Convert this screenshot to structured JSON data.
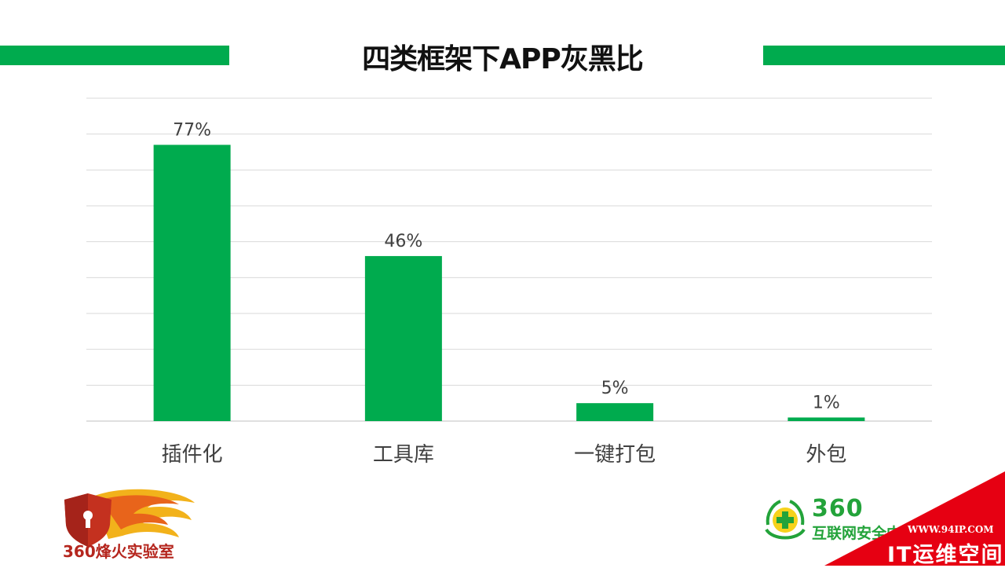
{
  "colors": {
    "accent_green": "#00ab4e",
    "grid": "#d9d9d9",
    "axis": "#bfbfbf",
    "label": "#404040",
    "watermark_red": "#e60012"
  },
  "chart_data": {
    "type": "bar",
    "title": "四类框架下APP灰黑比",
    "categories": [
      "插件化",
      "工具库",
      "一键打包",
      "外包"
    ],
    "values": [
      77,
      46,
      5,
      1
    ],
    "value_labels": [
      "77%",
      "46%",
      "5%",
      "1%"
    ],
    "ylim": [
      0,
      90
    ],
    "grid": true,
    "legend": "none",
    "xlabel": "",
    "ylabel": ""
  },
  "logos": {
    "left_text": "360烽火实验室",
    "left_icon": "flame-shield-icon",
    "right_number": "360",
    "right_text": "互联网安全中心",
    "right_icon": "green-plus-emblem-icon"
  },
  "watermark": {
    "url": "WWW.94IP.COM",
    "name": "IT运维空间"
  }
}
